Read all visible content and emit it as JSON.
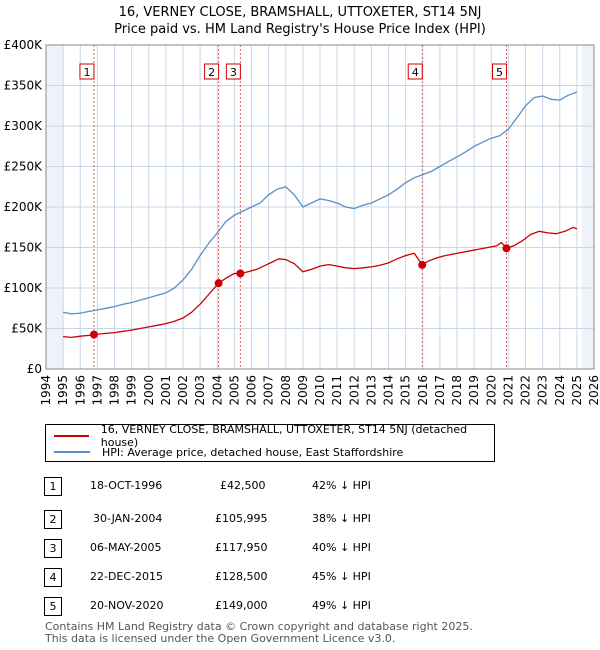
{
  "chart_data": {
    "type": "line",
    "title": "16, VERNEY CLOSE, BRAMSHALL, UTTOXETER, ST14 5NJ",
    "subtitle": "Price paid vs. HM Land Registry's House Price Index (HPI)",
    "xlim": [
      1994,
      2026
    ],
    "ylim": [
      0,
      400000
    ],
    "x_ticks": [
      "1994",
      "1995",
      "1996",
      "1997",
      "1998",
      "1999",
      "2000",
      "2001",
      "2002",
      "2003",
      "2004",
      "2005",
      "2006",
      "2007",
      "2008",
      "2009",
      "2010",
      "2011",
      "2012",
      "2013",
      "2014",
      "2015",
      "2016",
      "2017",
      "2018",
      "2019",
      "2020",
      "2021",
      "2022",
      "2023",
      "2024",
      "2025",
      "2026"
    ],
    "y_ticks": [
      {
        "value": 0,
        "label": "£0"
      },
      {
        "value": 50000,
        "label": "£50K"
      },
      {
        "value": 100000,
        "label": "£100K"
      },
      {
        "value": 150000,
        "label": "£150K"
      },
      {
        "value": 200000,
        "label": "£200K"
      },
      {
        "value": 250000,
        "label": "£250K"
      },
      {
        "value": 300000,
        "label": "£300K"
      },
      {
        "value": 350000,
        "label": "£350K"
      },
      {
        "value": 400000,
        "label": "£400K"
      }
    ],
    "data_range": [
      1995.0,
      2025.3
    ],
    "grid": true,
    "series": [
      {
        "name": "16, VERNEY CLOSE, BRAMSHALL, UTTOXETER, ST14 5NJ (detached house)",
        "color": "#cc0000",
        "points": [
          [
            1995.0,
            40000
          ],
          [
            1995.5,
            39000
          ],
          [
            1996.0,
            40500
          ],
          [
            1996.5,
            41500
          ],
          [
            1996.8,
            42500
          ],
          [
            1997.5,
            44000
          ],
          [
            1998.0,
            45000
          ],
          [
            1998.5,
            46500
          ],
          [
            1999.0,
            48000
          ],
          [
            1999.5,
            50000
          ],
          [
            2000.0,
            52000
          ],
          [
            2000.5,
            54000
          ],
          [
            2001.0,
            56000
          ],
          [
            2001.5,
            59000
          ],
          [
            2002.0,
            63000
          ],
          [
            2002.5,
            70000
          ],
          [
            2003.0,
            80000
          ],
          [
            2003.5,
            92000
          ],
          [
            2004.08,
            105995
          ],
          [
            2004.5,
            112000
          ],
          [
            2005.0,
            118000
          ],
          [
            2005.35,
            117950
          ],
          [
            2005.8,
            120000
          ],
          [
            2006.3,
            123000
          ],
          [
            2006.8,
            128000
          ],
          [
            2007.2,
            132000
          ],
          [
            2007.6,
            136000
          ],
          [
            2008.0,
            135000
          ],
          [
            2008.5,
            130000
          ],
          [
            2009.0,
            120000
          ],
          [
            2009.5,
            123000
          ],
          [
            2010.0,
            127000
          ],
          [
            2010.5,
            129000
          ],
          [
            2011.0,
            127000
          ],
          [
            2011.5,
            125000
          ],
          [
            2012.0,
            124000
          ],
          [
            2012.5,
            125000
          ],
          [
            2013.0,
            126000
          ],
          [
            2013.5,
            128000
          ],
          [
            2014.0,
            131000
          ],
          [
            2014.5,
            136000
          ],
          [
            2015.0,
            140000
          ],
          [
            2015.5,
            143000
          ],
          [
            2015.97,
            128500
          ],
          [
            2016.3,
            133000
          ],
          [
            2016.8,
            137000
          ],
          [
            2017.3,
            140000
          ],
          [
            2017.8,
            142000
          ],
          [
            2018.3,
            144000
          ],
          [
            2018.8,
            146000
          ],
          [
            2019.3,
            148000
          ],
          [
            2019.8,
            150000
          ],
          [
            2020.3,
            152000
          ],
          [
            2020.6,
            156000
          ],
          [
            2020.89,
            149000
          ],
          [
            2021.3,
            152000
          ],
          [
            2021.8,
            158000
          ],
          [
            2022.3,
            166000
          ],
          [
            2022.8,
            170000
          ],
          [
            2023.3,
            168000
          ],
          [
            2023.8,
            167000
          ],
          [
            2024.3,
            170000
          ],
          [
            2024.8,
            175000
          ],
          [
            2025.0,
            173000
          ]
        ]
      },
      {
        "name": "HPI: Average price, detached house, East Staffordshire",
        "color": "#5b8ec6",
        "points": [
          [
            1995.0,
            70000
          ],
          [
            1995.5,
            68000
          ],
          [
            1996.0,
            69000
          ],
          [
            1996.5,
            71000
          ],
          [
            1997.0,
            73000
          ],
          [
            1997.5,
            75000
          ],
          [
            1998.0,
            77000
          ],
          [
            1998.5,
            80000
          ],
          [
            1999.0,
            82000
          ],
          [
            1999.5,
            85000
          ],
          [
            2000.0,
            88000
          ],
          [
            2000.5,
            91000
          ],
          [
            2001.0,
            94000
          ],
          [
            2001.5,
            100000
          ],
          [
            2002.0,
            110000
          ],
          [
            2002.5,
            123000
          ],
          [
            2003.0,
            140000
          ],
          [
            2003.5,
            155000
          ],
          [
            2004.0,
            168000
          ],
          [
            2004.5,
            182000
          ],
          [
            2005.0,
            190000
          ],
          [
            2005.5,
            195000
          ],
          [
            2006.0,
            200000
          ],
          [
            2006.5,
            205000
          ],
          [
            2007.0,
            215000
          ],
          [
            2007.5,
            222000
          ],
          [
            2008.0,
            225000
          ],
          [
            2008.5,
            215000
          ],
          [
            2009.0,
            200000
          ],
          [
            2009.5,
            205000
          ],
          [
            2010.0,
            210000
          ],
          [
            2010.5,
            208000
          ],
          [
            2011.0,
            205000
          ],
          [
            2011.5,
            200000
          ],
          [
            2012.0,
            198000
          ],
          [
            2012.5,
            202000
          ],
          [
            2013.0,
            205000
          ],
          [
            2013.5,
            210000
          ],
          [
            2014.0,
            215000
          ],
          [
            2014.5,
            222000
          ],
          [
            2015.0,
            230000
          ],
          [
            2015.5,
            236000
          ],
          [
            2016.0,
            240000
          ],
          [
            2016.5,
            244000
          ],
          [
            2017.0,
            250000
          ],
          [
            2017.5,
            256000
          ],
          [
            2018.0,
            262000
          ],
          [
            2018.5,
            268000
          ],
          [
            2019.0,
            275000
          ],
          [
            2019.5,
            280000
          ],
          [
            2020.0,
            285000
          ],
          [
            2020.5,
            288000
          ],
          [
            2021.0,
            296000
          ],
          [
            2021.5,
            310000
          ],
          [
            2022.0,
            325000
          ],
          [
            2022.5,
            335000
          ],
          [
            2023.0,
            337000
          ],
          [
            2023.5,
            333000
          ],
          [
            2024.0,
            332000
          ],
          [
            2024.5,
            338000
          ],
          [
            2025.0,
            342000
          ]
        ]
      }
    ],
    "sales": [
      {
        "n": "1",
        "x": 1996.8,
        "y": 42500
      },
      {
        "n": "2",
        "x": 2004.08,
        "y": 105995
      },
      {
        "n": "3",
        "x": 2005.35,
        "y": 117950
      },
      {
        "n": "4",
        "x": 2015.97,
        "y": 128500
      },
      {
        "n": "5",
        "x": 2020.89,
        "y": 149000
      }
    ]
  },
  "legend": {
    "red_label": "16, VERNEY CLOSE, BRAMSHALL, UTTOXETER, ST14 5NJ (detached house)",
    "blue_label": "HPI: Average price, detached house, East Staffordshire"
  },
  "transactions": [
    {
      "n": "1",
      "date": "18-OCT-1996",
      "price": "£42,500",
      "hpi": "42% ↓ HPI"
    },
    {
      "n": "2",
      "date": "30-JAN-2004",
      "price": "£105,995",
      "hpi": "38% ↓ HPI"
    },
    {
      "n": "3",
      "date": "06-MAY-2005",
      "price": "£117,950",
      "hpi": "40% ↓ HPI"
    },
    {
      "n": "4",
      "date": "22-DEC-2015",
      "price": "£128,500",
      "hpi": "45% ↓ HPI"
    },
    {
      "n": "5",
      "date": "20-NOV-2020",
      "price": "£149,000",
      "hpi": "49% ↓ HPI"
    }
  ],
  "footer": {
    "line1": "Contains HM Land Registry data © Crown copyright and database right 2025.",
    "line2": "This data is licensed under the Open Government Licence v3.0."
  }
}
